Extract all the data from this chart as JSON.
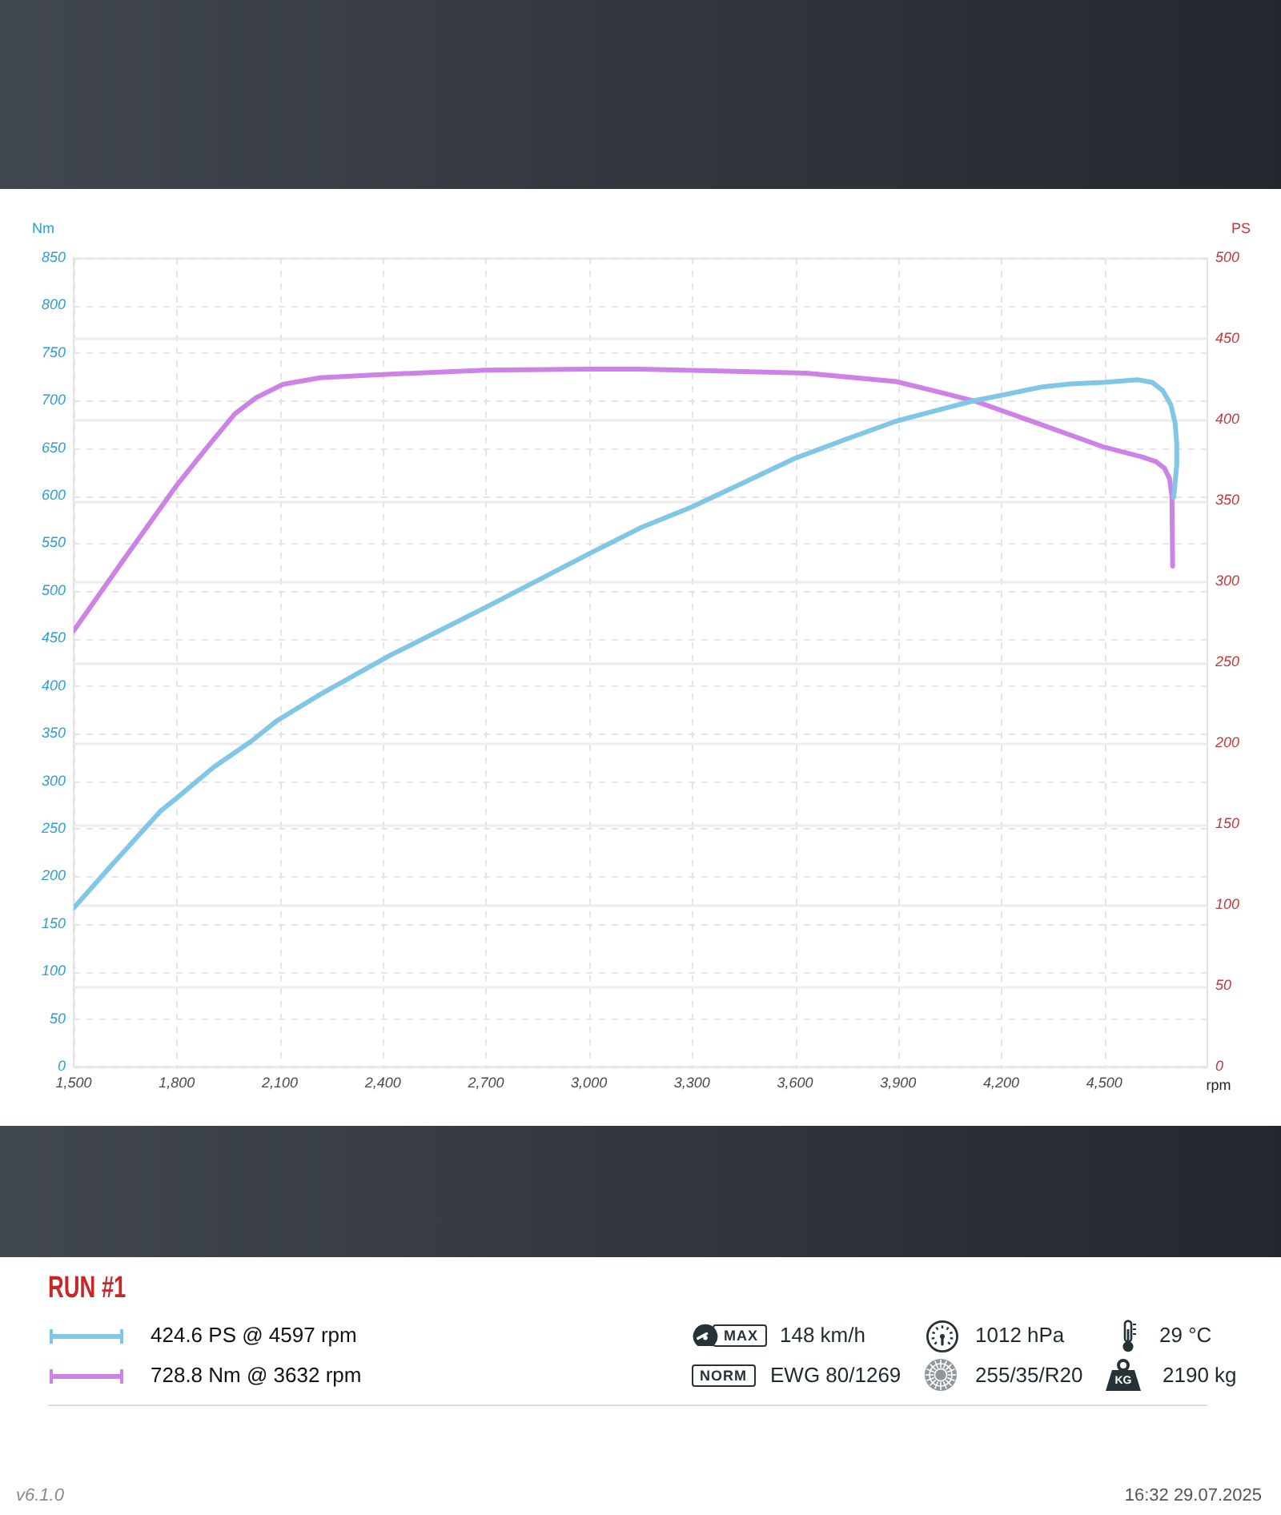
{
  "chart_data": {
    "type": "line",
    "xlabel": "rpm",
    "ylabel": "Nm",
    "y2label": "PS",
    "legend": "bottom",
    "legend_title": "RUN #1",
    "grid": true,
    "xlim": [
      1500,
      4800
    ],
    "xticks": [
      {
        "value": 1500,
        "label": "1,500"
      },
      {
        "value": 1800,
        "label": "1,800"
      },
      {
        "value": 2100,
        "label": "2,100"
      },
      {
        "value": 2400,
        "label": "2,400"
      },
      {
        "value": 2700,
        "label": "2,700"
      },
      {
        "value": 3000,
        "label": "3,000"
      },
      {
        "value": 3300,
        "label": "3,300"
      },
      {
        "value": 3600,
        "label": "3,600"
      },
      {
        "value": 3900,
        "label": "3,900"
      },
      {
        "value": 4200,
        "label": "4,200"
      },
      {
        "value": 4500,
        "label": "4,500"
      }
    ],
    "ylim": [
      0,
      850
    ],
    "yticks": [
      0,
      50,
      100,
      150,
      200,
      250,
      300,
      350,
      400,
      450,
      500,
      550,
      600,
      650,
      700,
      750,
      800,
      850
    ],
    "y2lim": [
      0,
      500
    ],
    "y2ticks": [
      0,
      50,
      100,
      150,
      200,
      250,
      300,
      350,
      400,
      450,
      500
    ],
    "series": [
      {
        "name": "424.6 PS @ 4597 rpm",
        "color": "#80c6e6",
        "axis": "y2",
        "x": [
          1500,
          1600,
          1753,
          1800,
          1907,
          2016,
          2093,
          2217,
          2419,
          2700,
          3000,
          3149,
          3300,
          3450,
          3599,
          3750,
          3894,
          4000,
          4127,
          4200,
          4314,
          4400,
          4500,
          4597,
          4640,
          4670,
          4694,
          4706,
          4711,
          4711,
          4702
        ],
        "values": [
          98,
          122,
          158,
          166,
          185,
          201,
          214,
          230,
          254,
          284,
          317,
          333,
          346,
          361,
          376,
          388,
          399,
          405,
          412,
          415,
          420,
          422,
          423,
          424.6,
          423,
          418,
          409,
          398,
          385,
          372,
          352
        ]
      },
      {
        "name": "728.8 Nm @ 3632 rpm",
        "color": "#cd82e6",
        "axis": "y",
        "x": [
          1500,
          1650,
          1798,
          1900,
          1969,
          2031,
          2109,
          2217,
          2373,
          2699,
          3000,
          3149,
          3400,
          3632,
          3894,
          4019,
          4127,
          4314,
          4500,
          4608,
          4650,
          4675,
          4690,
          4697,
          4699
        ],
        "values": [
          458,
          535,
          610,
          656,
          686,
          703,
          717,
          724,
          727,
          732,
          733,
          733,
          731,
          728.8,
          720,
          709,
          699,
          675,
          651,
          641,
          636,
          629,
          618,
          599,
          526
        ]
      }
    ],
    "annotations": [
      "MAX",
      "148 km/h",
      "1012 hPa",
      "29 °C",
      "NORM",
      "EWG 80/1269",
      "255/35/R20",
      "KG",
      "2190 kg",
      "v6.1.0",
      "16:32 29.07.2025"
    ]
  }
}
